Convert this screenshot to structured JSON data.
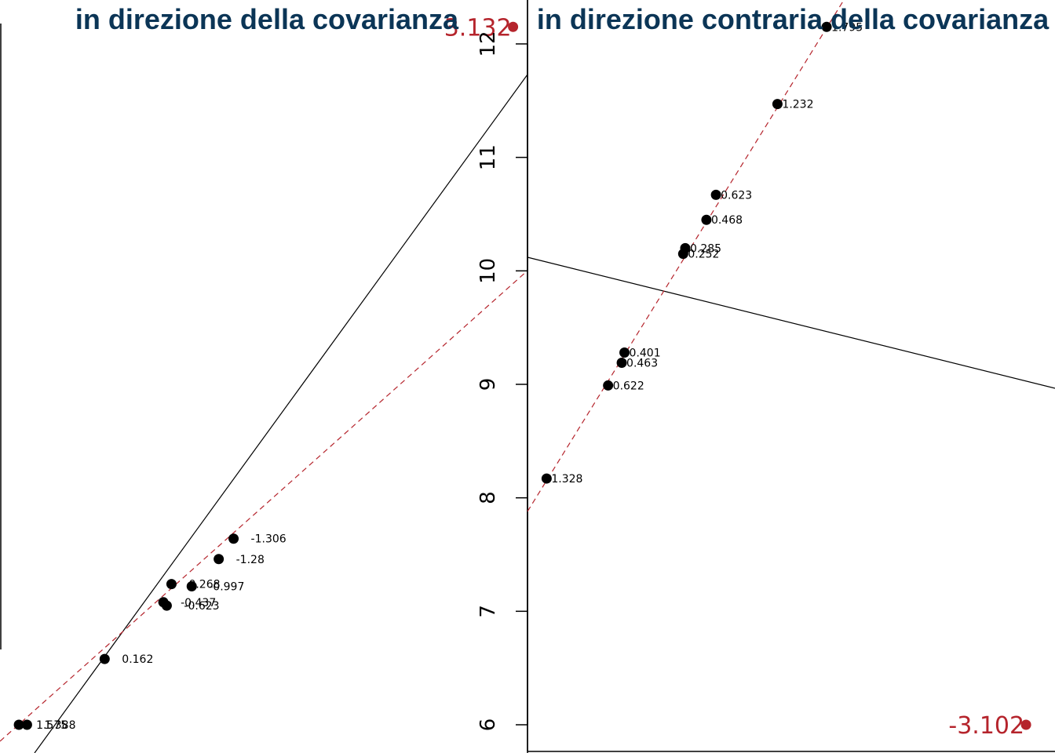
{
  "colors": {
    "title": "#0b3556",
    "highlight": "#b5242c",
    "points": "#000000",
    "fit_line": "#b5242c",
    "cov_line": "#000000"
  },
  "chart_data": [
    {
      "type": "scatter",
      "title": "in direzione della covarianza",
      "xlabel": "",
      "ylabel": "",
      "yticks": [],
      "grid": false,
      "dashed_line_label": "regression line (dashed red)",
      "points": [
        {
          "x": 0.28,
          "y": 6.0,
          "label": "1.575"
        },
        {
          "x": 0.4,
          "y": 6.0,
          "label": "1.388"
        },
        {
          "x": 1.55,
          "y": 6.58,
          "label": "0.162"
        },
        {
          "x": 2.42,
          "y": 7.08,
          "label": "-0.437"
        },
        {
          "x": 2.47,
          "y": 7.05,
          "label": "-0.623"
        },
        {
          "x": 2.54,
          "y": 7.24,
          "label": "0.268"
        },
        {
          "x": 2.84,
          "y": 7.22,
          "label": "-0.997"
        },
        {
          "x": 3.24,
          "y": 7.46,
          "label": "-1.28"
        },
        {
          "x": 3.46,
          "y": 7.64,
          "label": "-1.306"
        }
      ],
      "highlight": {
        "x": 7.6,
        "y": 12.15,
        "label": "3.132"
      }
    },
    {
      "type": "scatter",
      "title": "in direzione contraria della covarianza",
      "xlabel": "",
      "ylabel": "",
      "yticks": [
        6,
        7,
        8,
        9,
        10,
        11,
        12
      ],
      "grid": false,
      "points": [
        {
          "x": 0.28,
          "y": 8.17,
          "label": "1.328"
        },
        {
          "x": 1.18,
          "y": 8.99,
          "label": "0.622"
        },
        {
          "x": 1.38,
          "y": 9.19,
          "label": "0.463"
        },
        {
          "x": 1.42,
          "y": 9.28,
          "label": "0.401"
        },
        {
          "x": 2.28,
          "y": 10.15,
          "label": "0.252"
        },
        {
          "x": 2.31,
          "y": 10.2,
          "label": "0.285"
        },
        {
          "x": 2.62,
          "y": 10.45,
          "label": "0.468"
        },
        {
          "x": 2.76,
          "y": 10.67,
          "label": "0.623"
        },
        {
          "x": 3.66,
          "y": 11.47,
          "label": "1.232"
        },
        {
          "x": 4.38,
          "y": 12.15,
          "label": "1.795"
        }
      ],
      "highlight": {
        "x": 7.3,
        "y": 6.0,
        "label": "-3.102"
      }
    }
  ]
}
